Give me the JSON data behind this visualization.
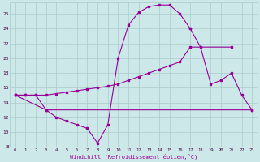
{
  "xlabel": "Windchill (Refroidissement éolien,°C)",
  "bg_color": "#cce8e8",
  "grid_color": "#aacccc",
  "line_color": "#990099",
  "xlim": [
    -0.5,
    23.5
  ],
  "ylim": [
    8,
    27.5
  ],
  "yticks": [
    8,
    10,
    12,
    14,
    16,
    18,
    20,
    22,
    24,
    26
  ],
  "xticks": [
    0,
    1,
    2,
    3,
    4,
    5,
    6,
    7,
    8,
    9,
    10,
    11,
    12,
    13,
    14,
    15,
    16,
    17,
    18,
    19,
    20,
    21,
    22,
    23
  ],
  "curve1_x": [
    0,
    1,
    2,
    3,
    4,
    5,
    6,
    7,
    8,
    9,
    10,
    11,
    12,
    13,
    14,
    15,
    16,
    17
  ],
  "curve1_y": [
    15,
    15,
    15,
    13,
    12,
    11.5,
    11,
    10.5,
    8.5,
    11,
    20,
    24.5,
    26.2,
    27,
    27.2,
    27.2,
    26,
    24
  ],
  "flat_line_x": [
    0,
    3,
    23
  ],
  "flat_line_y": [
    15,
    13,
    13
  ],
  "rising_line_x": [
    0,
    1,
    2,
    3,
    4,
    5,
    6,
    7,
    8,
    9,
    10,
    11,
    12,
    13,
    14,
    15,
    16,
    17,
    21
  ],
  "rising_line_y": [
    15,
    15,
    15,
    15,
    15.2,
    15.4,
    15.6,
    15.8,
    16.0,
    16.2,
    16.5,
    17.0,
    17.5,
    18.0,
    18.5,
    19.0,
    19.5,
    21.5,
    21.5
  ],
  "curve2_x": [
    17,
    18,
    19,
    20,
    21,
    22,
    23
  ],
  "curve2_y": [
    24,
    21.5,
    16.5,
    17,
    18,
    15,
    13
  ]
}
